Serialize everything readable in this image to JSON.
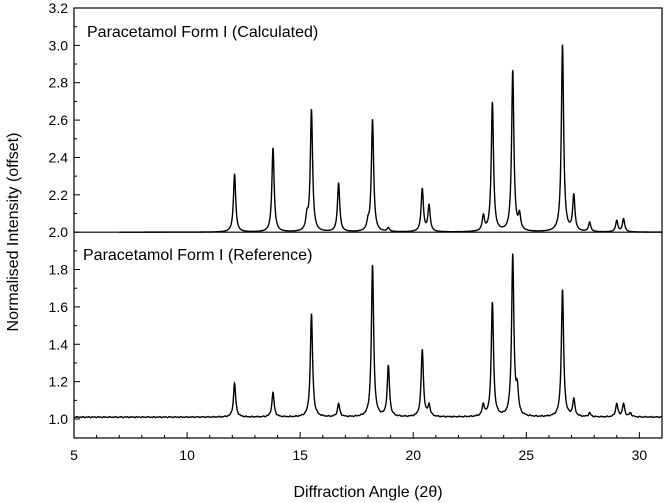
{
  "chart_data": {
    "type": "line",
    "title": "",
    "xlabel": "Diffraction Angle (2θ)",
    "ylabel": "Normalised Intensity (offset)",
    "xlim": [
      5,
      31
    ],
    "ylim": [
      0.95,
      3.2
    ],
    "x_ticks": [
      5,
      10,
      15,
      20,
      25,
      30
    ],
    "y_ticks": [
      1.0,
      1.2,
      1.4,
      1.6,
      1.8,
      2.0,
      2.2,
      2.4,
      2.6,
      2.8,
      3.0,
      3.2
    ],
    "y_tick_labels": [
      "1.0",
      "1.2",
      "1.4",
      "1.6",
      "1.8",
      "2.0",
      "2.2",
      "2.4",
      "2.6",
      "2.8",
      "3.0",
      "3.2"
    ],
    "divider_y": 2.0,
    "grid": false,
    "series": [
      {
        "name": "Paracetamol Form I (Calculated)",
        "baseline": 2.0,
        "color": "#000000",
        "peaks": [
          {
            "x": 12.1,
            "y": 2.31
          },
          {
            "x": 13.8,
            "y": 2.45
          },
          {
            "x": 15.3,
            "y": 2.07
          },
          {
            "x": 15.5,
            "y": 2.65
          },
          {
            "x": 16.7,
            "y": 2.26
          },
          {
            "x": 18.0,
            "y": 2.04
          },
          {
            "x": 18.2,
            "y": 2.6
          },
          {
            "x": 18.9,
            "y": 2.02
          },
          {
            "x": 20.4,
            "y": 2.23
          },
          {
            "x": 20.7,
            "y": 2.14
          },
          {
            "x": 23.1,
            "y": 2.08
          },
          {
            "x": 23.5,
            "y": 2.69
          },
          {
            "x": 24.4,
            "y": 2.86
          },
          {
            "x": 24.7,
            "y": 2.08
          },
          {
            "x": 26.6,
            "y": 3.0
          },
          {
            "x": 27.1,
            "y": 2.19
          },
          {
            "x": 27.8,
            "y": 2.05
          },
          {
            "x": 29.0,
            "y": 2.06
          },
          {
            "x": 29.3,
            "y": 2.07
          }
        ]
      },
      {
        "name": "Paracetamol Form I (Reference)",
        "baseline": 1.01,
        "color": "#000000",
        "peaks": [
          {
            "x": 12.1,
            "y": 1.19
          },
          {
            "x": 13.8,
            "y": 1.14
          },
          {
            "x": 15.5,
            "y": 1.56
          },
          {
            "x": 16.7,
            "y": 1.08
          },
          {
            "x": 18.2,
            "y": 1.82
          },
          {
            "x": 18.9,
            "y": 1.28
          },
          {
            "x": 20.4,
            "y": 1.37
          },
          {
            "x": 20.7,
            "y": 1.07
          },
          {
            "x": 23.1,
            "y": 1.07
          },
          {
            "x": 23.5,
            "y": 1.62
          },
          {
            "x": 24.4,
            "y": 1.87
          },
          {
            "x": 24.6,
            "y": 1.14
          },
          {
            "x": 26.6,
            "y": 1.69
          },
          {
            "x": 27.1,
            "y": 1.1
          },
          {
            "x": 27.8,
            "y": 1.03
          },
          {
            "x": 29.0,
            "y": 1.08
          },
          {
            "x": 29.3,
            "y": 1.08
          },
          {
            "x": 29.6,
            "y": 1.03
          }
        ]
      }
    ]
  }
}
